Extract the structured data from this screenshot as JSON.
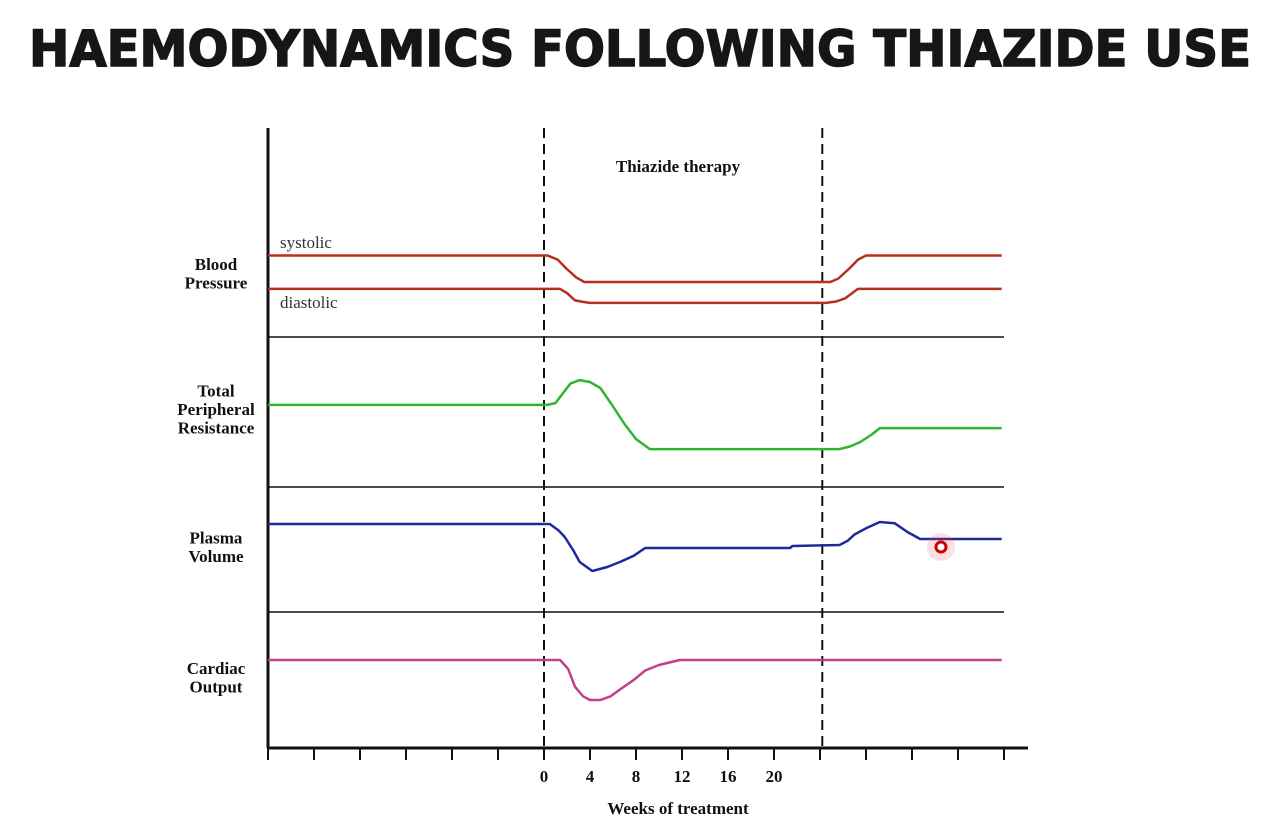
{
  "title": "HAEMODYNAMICS FOLLOWING THIAZIDE USE",
  "chart_data": {
    "type": "line",
    "title": "HAEMODYNAMICS FOLLOWING THIAZIDE USE",
    "xlabel": "Weeks of treatment",
    "xlim": [
      -24,
      40
    ],
    "x_tick_labels": [
      "0",
      "4",
      "8",
      "12",
      "16",
      "20"
    ],
    "x_tick_values": [
      0,
      4,
      8,
      12,
      16,
      20
    ],
    "unlabeled_tick_step": 4,
    "y_units": "relative level (0-100 within each panel)",
    "therapy_window": {
      "label": "Thiazide therapy",
      "start": 0,
      "end": 24.2
    },
    "panels": [
      {
        "label": "Blood Pressure",
        "series": [
          {
            "name": "systolic",
            "color": "#b5301f",
            "points": [
              [
                -24,
                39
              ],
              [
                0.3,
                39
              ],
              [
                1.2,
                37
              ],
              [
                1.9,
                33
              ],
              [
                2.8,
                28.5
              ],
              [
                3.5,
                26.3
              ],
              [
                24.9,
                26.3
              ],
              [
                25.6,
                28
              ],
              [
                26.6,
                33
              ],
              [
                27.3,
                37
              ],
              [
                28,
                39
              ],
              [
                39.8,
                39
              ]
            ]
          },
          {
            "name": "diastolic",
            "color": "#b5301f",
            "points": [
              [
                -24,
                23
              ],
              [
                1.4,
                23
              ],
              [
                2,
                21
              ],
              [
                2.7,
                17.5
              ],
              [
                3.4,
                16.8
              ],
              [
                4,
                16.3
              ],
              [
                24.5,
                16.3
              ],
              [
                25.4,
                17
              ],
              [
                26.2,
                18.5
              ],
              [
                26.8,
                21
              ],
              [
                27.3,
                23
              ],
              [
                39.8,
                23
              ]
            ]
          }
        ]
      },
      {
        "label": "Total Peripheral Resistance",
        "series": [
          {
            "name": "Total Peripheral Resistance",
            "color": "#2fb52f",
            "points": [
              [
                -24,
                54.7
              ],
              [
                0.3,
                54.7
              ],
              [
                1,
                56
              ],
              [
                1.7,
                63
              ],
              [
                2.3,
                69
              ],
              [
                3.1,
                71.3
              ],
              [
                4,
                70
              ],
              [
                4.9,
                66
              ],
              [
                5.8,
                56
              ],
              [
                7,
                42
              ],
              [
                8,
                32
              ],
              [
                9.2,
                25.3
              ],
              [
                25.7,
                25.3
              ],
              [
                26.6,
                27
              ],
              [
                27.5,
                30
              ],
              [
                28.5,
                35
              ],
              [
                29.2,
                39.3
              ],
              [
                39.8,
                39.3
              ]
            ]
          }
        ]
      },
      {
        "label": "Plasma Volume",
        "series": [
          {
            "name": "Plasma Volume",
            "color": "#1f2a9a",
            "points": [
              [
                -24,
                70.4
              ],
              [
                0.5,
                70.4
              ],
              [
                1.3,
                65
              ],
              [
                1.8,
                60
              ],
              [
                2.5,
                50
              ],
              [
                3.1,
                40
              ],
              [
                4.2,
                32.8
              ],
              [
                5.5,
                36
              ],
              [
                6.6,
                40
              ],
              [
                7.8,
                45
              ],
              [
                8.8,
                51.2
              ],
              [
                21.4,
                51.2
              ],
              [
                21.6,
                52.8
              ],
              [
                25.7,
                53.6
              ],
              [
                26.4,
                57
              ],
              [
                27,
                62
              ],
              [
                28,
                67
              ],
              [
                29.2,
                72
              ],
              [
                30.5,
                71
              ],
              [
                31.6,
                64
              ],
              [
                32.7,
                58.4
              ],
              [
                39.8,
                58.4
              ]
            ]
          }
        ]
      },
      {
        "label": "Cardiac Output",
        "series": [
          {
            "name": "Cardiac Output",
            "color": "#c0408a",
            "points": [
              [
                -24,
                64.7
              ],
              [
                1.4,
                64.7
              ],
              [
                2.1,
                58
              ],
              [
                2.7,
                45
              ],
              [
                3.4,
                38
              ],
              [
                4,
                35.3
              ],
              [
                4.9,
                35.3
              ],
              [
                5.8,
                38
              ],
              [
                6.6,
                43
              ],
              [
                7.8,
                50
              ],
              [
                8.8,
                57
              ],
              [
                10,
                61
              ],
              [
                11.8,
                64.7
              ],
              [
                39.8,
                64.7
              ]
            ]
          }
        ]
      }
    ]
  }
}
